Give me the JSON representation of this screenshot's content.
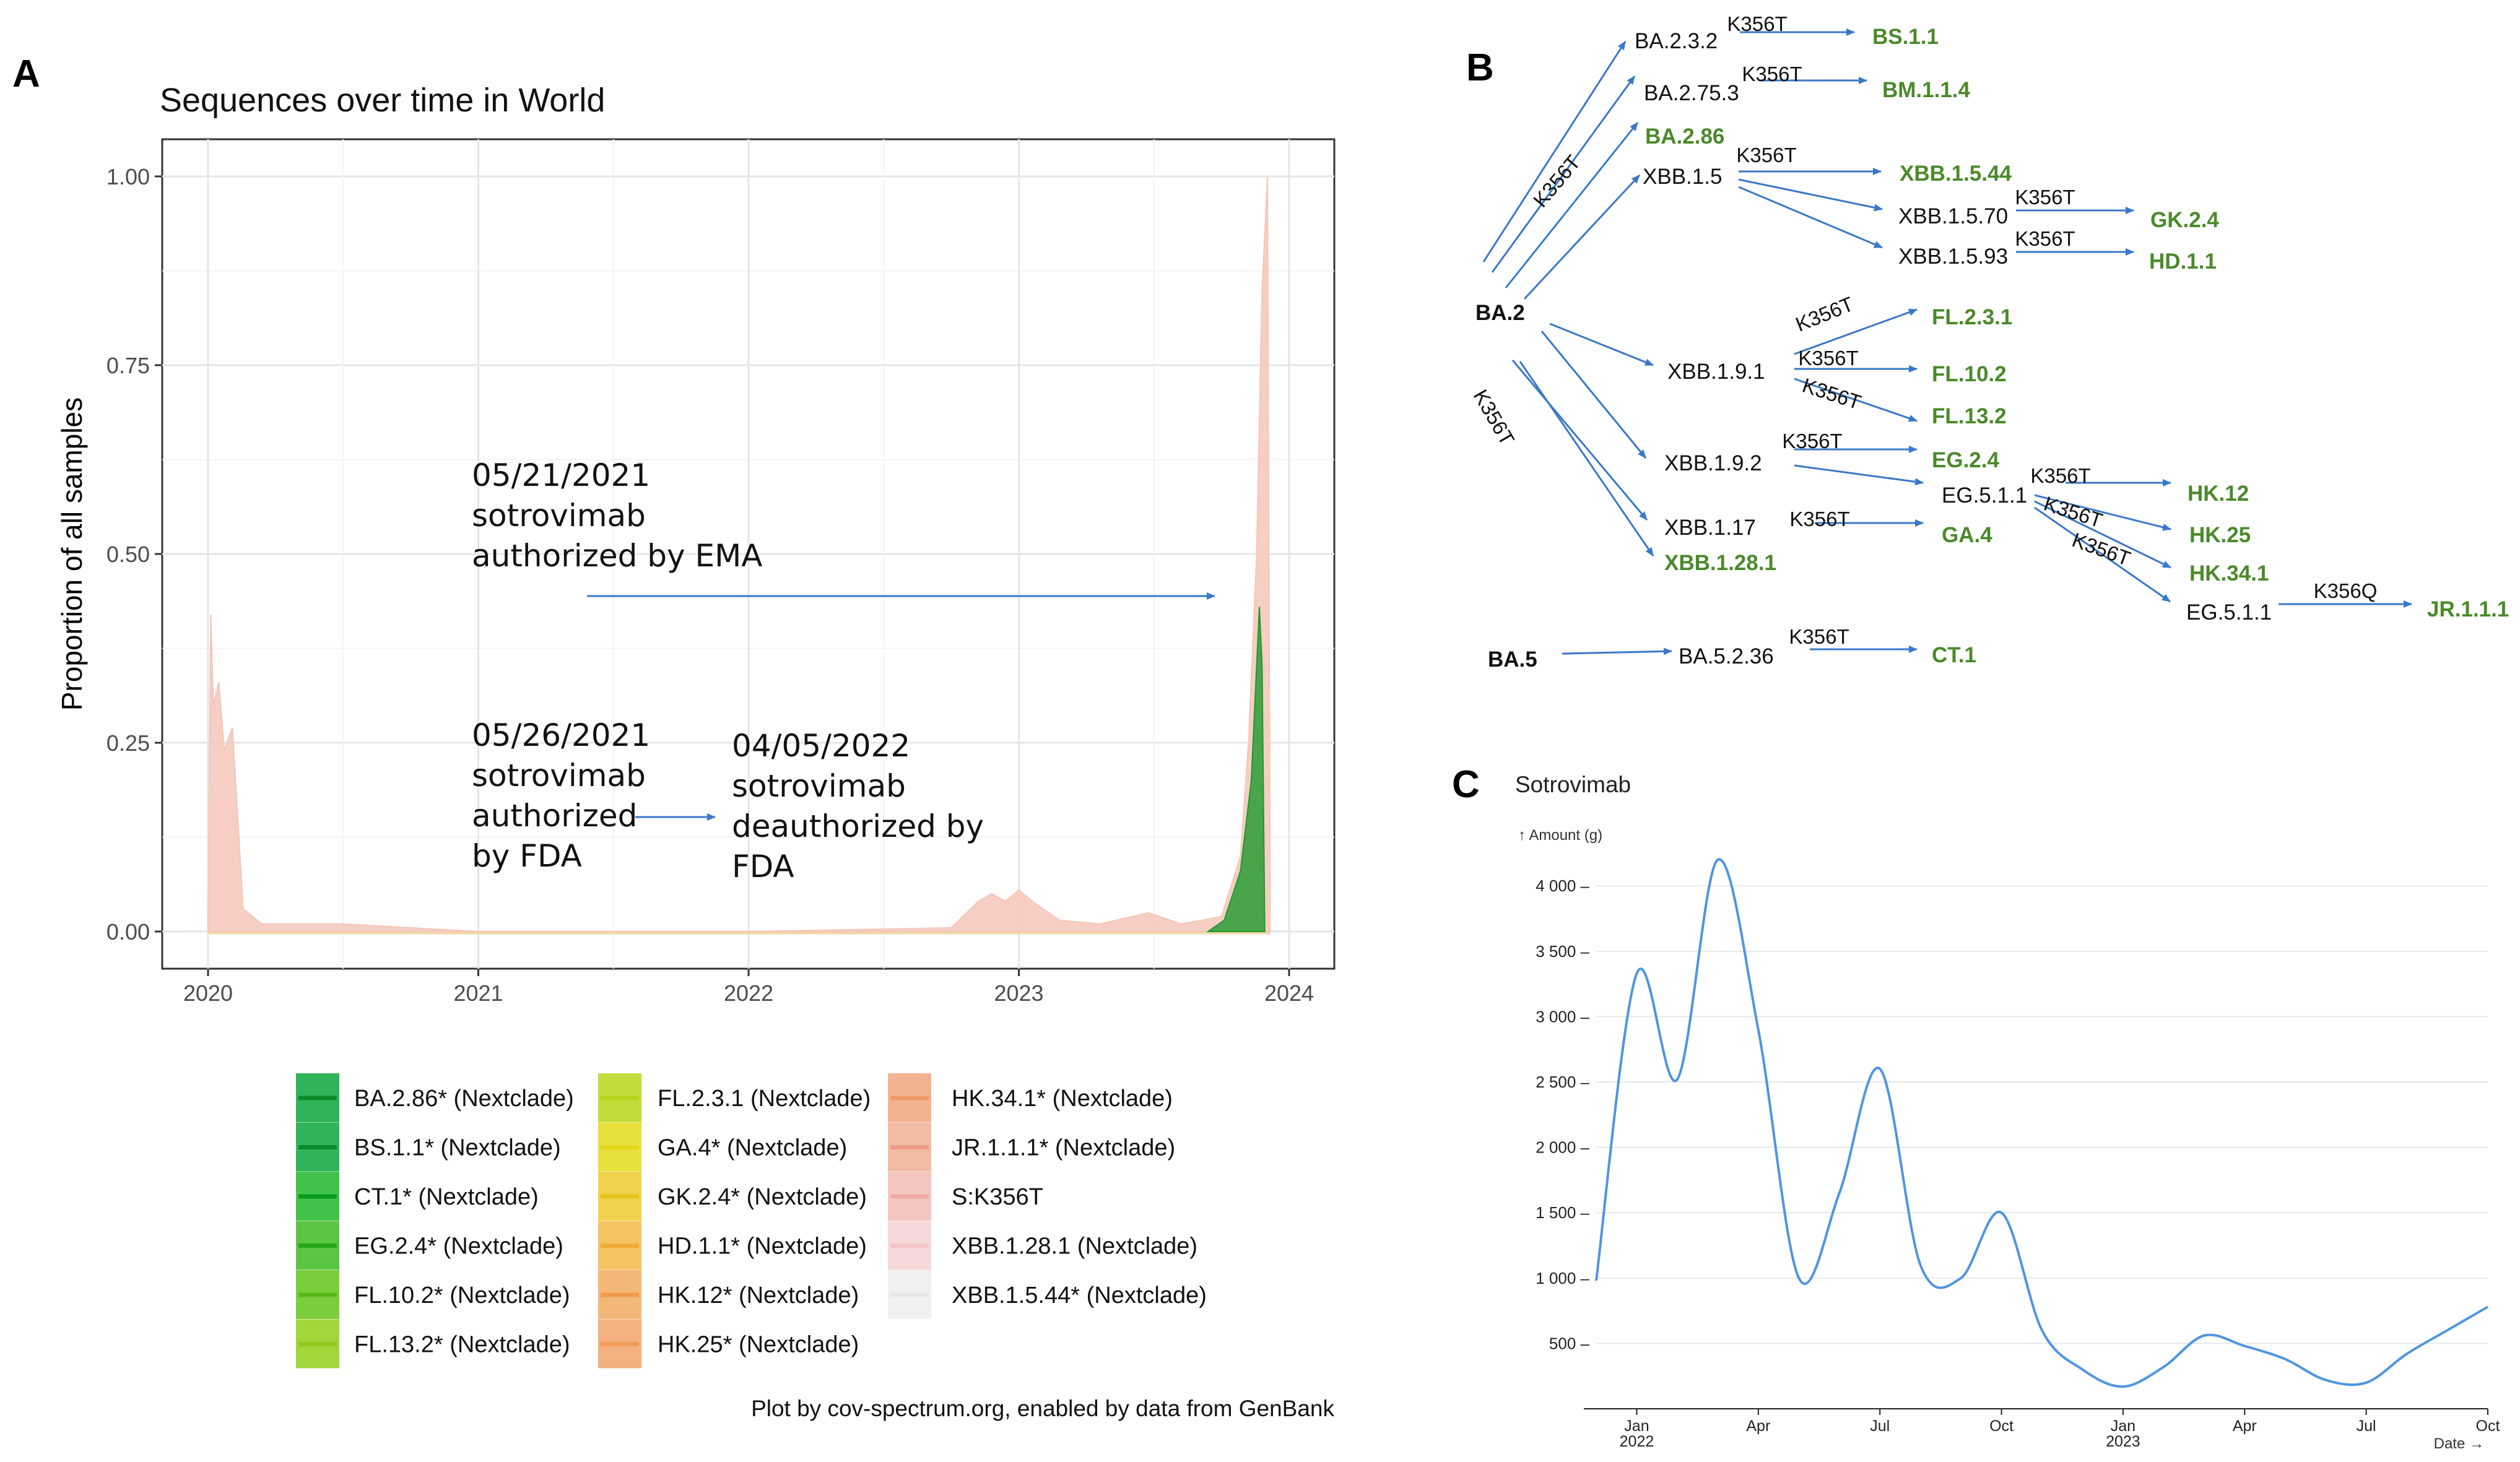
{
  "panel_a": {
    "letter": "A",
    "footer": "Plot by cov-spectrum.org, enabled by data from GenBank",
    "annotations": {
      "ema": [
        "05/21/2021",
        "sotrovimab",
        "authorized by EMA"
      ],
      "fda_auth": [
        "05/26/2021",
        "sotrovimab",
        "authorized",
        "by FDA"
      ],
      "fda_deauth": [
        "04/05/2022",
        "sotrovimab",
        "deauthorized by",
        "FDA"
      ]
    }
  },
  "panel_b": {
    "letter": "B",
    "nodes": {
      "ba2": "BA.2",
      "ba5": "BA.5",
      "ba232": "BA.2.3.2",
      "bs11": "BS.1.1",
      "ba2753": "BA.2.75.3",
      "bm114": "BM.1.1.4",
      "ba286": "BA.2.86",
      "xbb15": "XBB.1.5",
      "xbb1544": "XBB.1.5.44",
      "xbb1570": "XBB.1.5.70",
      "gk24": "GK.2.4",
      "xbb1593": "XBB.1.5.93",
      "hd11": "HD.1.1",
      "xbb191": "XBB.1.9.1",
      "fl231": "FL.2.3.1",
      "fl102": "FL.10.2",
      "fl132": "FL.13.2",
      "xbb192": "XBB.1.9.2",
      "eg24": "EG.2.4",
      "eg511": "EG.5.1.1",
      "hk12": "HK.12",
      "hk25": "HK.25",
      "hk341": "HK.34.1",
      "eg511b": "EG.5.1.1",
      "jr111": "JR.1.1.1",
      "xbb117": "XBB.1.17",
      "ga4": "GA.4",
      "xbb1281": "XBB.1.28.1",
      "ba5236": "BA.5.2.36",
      "ct1": "CT.1"
    },
    "mutation": "K356T",
    "mutation_q": "K356Q",
    "colors": {
      "arrow": "#3a78c9",
      "derived": "#4a8a2a"
    }
  },
  "panel_c": {
    "letter": "C"
  },
  "chart_data": [
    {
      "type": "area",
      "title": "Sequences over time in World",
      "xlabel": "",
      "ylabel": "Proportion of all samples",
      "x_ticks": [
        "2020",
        "2021",
        "2022",
        "2023",
        "2024"
      ],
      "y_ticks": [
        "0.00",
        "0.25",
        "0.50",
        "0.75",
        "1.00"
      ],
      "xlim": [
        2020.0,
        2024.0
      ],
      "ylim": [
        0,
        1
      ],
      "grid": true,
      "series": [
        {
          "name": "S:K356T",
          "color": "#f5c6b8",
          "points": [
            [
              2020.0,
              0.0
            ],
            [
              2020.01,
              0.42
            ],
            [
              2020.02,
              0.3
            ],
            [
              2020.04,
              0.33
            ],
            [
              2020.06,
              0.24
            ],
            [
              2020.09,
              0.27
            ],
            [
              2020.11,
              0.15
            ],
            [
              2020.13,
              0.03
            ],
            [
              2020.2,
              0.01
            ],
            [
              2020.5,
              0.01
            ],
            [
              2021.0,
              0.0
            ],
            [
              2022.0,
              0.0
            ],
            [
              2022.75,
              0.005
            ],
            [
              2022.85,
              0.04
            ],
            [
              2022.9,
              0.05
            ],
            [
              2022.95,
              0.04
            ],
            [
              2023.0,
              0.055
            ],
            [
              2023.05,
              0.04
            ],
            [
              2023.15,
              0.015
            ],
            [
              2023.3,
              0.01
            ],
            [
              2023.48,
              0.025
            ],
            [
              2023.6,
              0.01
            ],
            [
              2023.75,
              0.02
            ],
            [
              2023.82,
              0.1
            ],
            [
              2023.85,
              0.25
            ],
            [
              2023.88,
              0.5
            ],
            [
              2023.9,
              0.85
            ],
            [
              2023.92,
              1.0
            ],
            [
              2023.93,
              0.06
            ]
          ]
        },
        {
          "name": "EG.2.4* (Nextclade)",
          "color": "#1f9a2e",
          "points": [
            [
              2023.7,
              0.0
            ],
            [
              2023.76,
              0.015
            ],
            [
              2023.82,
              0.08
            ],
            [
              2023.86,
              0.2
            ],
            [
              2023.89,
              0.43
            ],
            [
              2023.9,
              0.35
            ],
            [
              2023.91,
              0.0
            ]
          ]
        }
      ],
      "legend": [
        "BA.2.86* (Nextclade)",
        "BS.1.1* (Nextclade)",
        "CT.1* (Nextclade)",
        "EG.2.4* (Nextclade)",
        "FL.10.2* (Nextclade)",
        "FL.13.2* (Nextclade)",
        "FL.2.3.1 (Nextclade)",
        "GA.4* (Nextclade)",
        "GK.2.4* (Nextclade)",
        "HD.1.1* (Nextclade)",
        "HK.12* (Nextclade)",
        "HK.25* (Nextclade)",
        "HK.34.1* (Nextclade)",
        "JR.1.1.1* (Nextclade)",
        "S:K356T",
        "XBB.1.28.1 (Nextclade)",
        "XBB.1.5.44* (Nextclade)"
      ],
      "legend_colors": [
        "#2fb45a",
        "#2fb45a",
        "#43c24a",
        "#5cc443",
        "#7ccd3c",
        "#a2d63a",
        "#c2dc3c",
        "#e8e03c",
        "#f0d24a",
        "#f3c460",
        "#f4b77a",
        "#f4b07e",
        "#f3b390",
        "#f2bba4",
        "#f3c7c0",
        "#f6dada",
        "#f0f0f0"
      ],
      "legend_line_colors": [
        "#0a8a2a",
        "#0a8a2a",
        "#0a9a1a",
        "#22a81a",
        "#58b81a",
        "#90c81a",
        "#b8d41a",
        "#e2d81a",
        "#e6c21e",
        "#eeac3a",
        "#f09a4e",
        "#f09a5a",
        "#ee9a6a",
        "#ee9c88",
        "#eeaaa6",
        "#f2c6c6",
        "#e6e6e6"
      ]
    },
    {
      "type": "line",
      "title": "Sotrovimab",
      "ylabel": "↑ Amount (g)",
      "xlabel": "Date →",
      "x_ticks": [
        {
          "pos": 0,
          "label": "Jan",
          "year": "2022"
        },
        {
          "pos": 3,
          "label": "Apr",
          "year": ""
        },
        {
          "pos": 6,
          "label": "Jul",
          "year": ""
        },
        {
          "pos": 9,
          "label": "Oct",
          "year": ""
        },
        {
          "pos": 12,
          "label": "Jan",
          "year": "2023"
        },
        {
          "pos": 15,
          "label": "Apr",
          "year": ""
        },
        {
          "pos": 18,
          "label": "Jul",
          "year": ""
        },
        {
          "pos": 21,
          "label": "Oct",
          "year": ""
        }
      ],
      "y_ticks": [
        "500",
        "1 000",
        "1 500",
        "2 000",
        "2 500",
        "3 000",
        "3 500",
        "4 000"
      ],
      "xlim": [
        -1,
        21
      ],
      "ylim": [
        0,
        4200
      ],
      "grid": true,
      "points": [
        [
          -1,
          980
        ],
        [
          0,
          3330
        ],
        [
          1,
          2520
        ],
        [
          2,
          4200
        ],
        [
          3,
          2900
        ],
        [
          4,
          1000
        ],
        [
          5,
          1650
        ],
        [
          6,
          2600
        ],
        [
          7,
          1100
        ],
        [
          8,
          1000
        ],
        [
          9,
          1500
        ],
        [
          10,
          600
        ],
        [
          11,
          300
        ],
        [
          12,
          170
        ],
        [
          13,
          320
        ],
        [
          14,
          560
        ],
        [
          15,
          480
        ],
        [
          16,
          380
        ],
        [
          17,
          220
        ],
        [
          18,
          200
        ],
        [
          19,
          420
        ],
        [
          20,
          600
        ],
        [
          21,
          780
        ]
      ],
      "color": "#4f95e0"
    }
  ]
}
